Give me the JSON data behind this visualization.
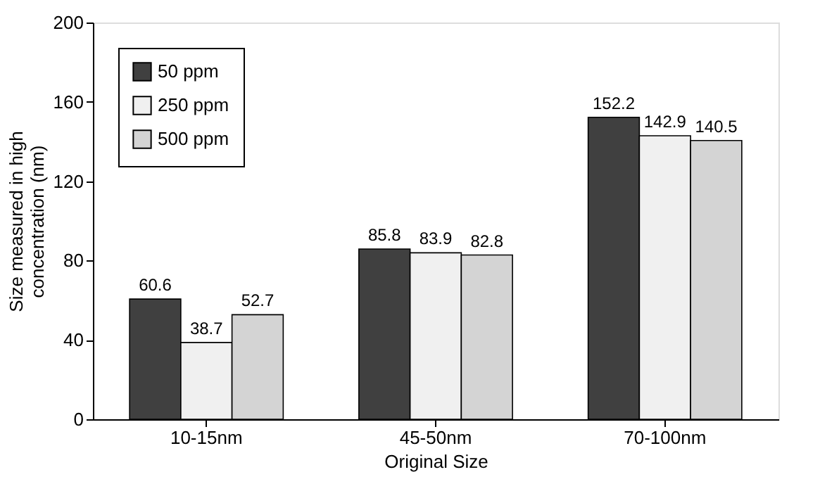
{
  "chart_data": {
    "type": "bar",
    "xlabel": "Original Size",
    "ylabel": "Size measured in high\nconcentration (nm)",
    "categories": [
      "10-15nm",
      "45-50nm",
      "70-100nm"
    ],
    "series": [
      {
        "name": "50 ppm",
        "color": "#404040",
        "values": [
          60.6,
          85.8,
          152.2
        ]
      },
      {
        "name": "250 ppm",
        "color": "#f0f0f0",
        "values": [
          38.7,
          83.9,
          142.9
        ]
      },
      {
        "name": "500 ppm",
        "color": "#d4d4d4",
        "values": [
          52.7,
          82.8,
          140.5
        ]
      }
    ],
    "ylim": [
      0,
      200
    ],
    "yticks": [
      0,
      40,
      80,
      120,
      160,
      200
    ],
    "data_labels": true,
    "legend": "top left",
    "grid": false
  }
}
